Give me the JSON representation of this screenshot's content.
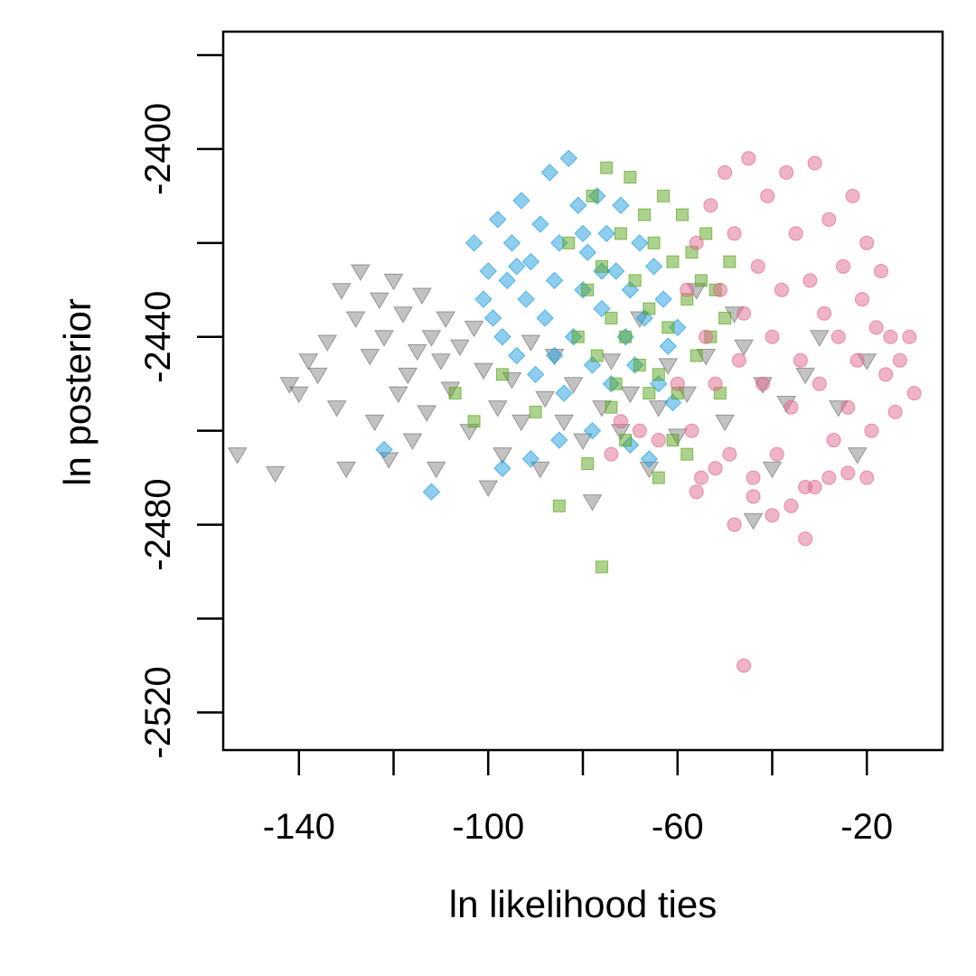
{
  "chart_data": {
    "type": "scatter",
    "title": "",
    "xlabel": "ln likelihood ties",
    "ylabel": "ln posterior",
    "xlim": [
      -156,
      -4
    ],
    "ylim": [
      -2528,
      -2375
    ],
    "x_ticks": [
      -140,
      -120,
      -100,
      -80,
      -60,
      -40,
      -20
    ],
    "x_tick_labels": [
      "-140",
      "-100",
      "-60",
      "-20"
    ],
    "x_tick_labels_at": [
      -140,
      -100,
      -60,
      -20
    ],
    "y_ticks": [
      -2520,
      -2500,
      -2480,
      -2460,
      -2440,
      -2420,
      -2400,
      -2380
    ],
    "y_tick_labels": [
      "-2520",
      "-2480",
      "-2440",
      "-2400"
    ],
    "y_tick_labels_at": [
      -2520,
      -2480,
      -2440,
      -2400
    ],
    "grid": false,
    "legend": "none",
    "series": [
      {
        "marker": "triangle-down",
        "color": "#666666",
        "opacity": 0.4,
        "points": [
          [
            -153,
            -2465
          ],
          [
            -145,
            -2469
          ],
          [
            -142,
            -2450
          ],
          [
            -140,
            -2452
          ],
          [
            -138,
            -2445
          ],
          [
            -136,
            -2448
          ],
          [
            -134,
            -2441
          ],
          [
            -132,
            -2455
          ],
          [
            -131,
            -2430
          ],
          [
            -130,
            -2468
          ],
          [
            -128,
            -2436
          ],
          [
            -127,
            -2426
          ],
          [
            -125,
            -2444
          ],
          [
            -124,
            -2458
          ],
          [
            -123,
            -2432
          ],
          [
            -122,
            -2440
          ],
          [
            -121,
            -2466
          ],
          [
            -120,
            -2428
          ],
          [
            -119,
            -2452
          ],
          [
            -118,
            -2435
          ],
          [
            -117,
            -2448
          ],
          [
            -116,
            -2462
          ],
          [
            -115,
            -2443
          ],
          [
            -114,
            -2431
          ],
          [
            -113,
            -2456
          ],
          [
            -112,
            -2440
          ],
          [
            -111,
            -2468
          ],
          [
            -110,
            -2445
          ],
          [
            -109,
            -2436
          ],
          [
            -108,
            -2451
          ],
          [
            -106,
            -2442
          ],
          [
            -104,
            -2460
          ],
          [
            -103,
            -2438
          ],
          [
            -101,
            -2447
          ],
          [
            -100,
            -2472
          ],
          [
            -98,
            -2455
          ],
          [
            -97,
            -2465
          ],
          [
            -95,
            -2449
          ],
          [
            -93,
            -2458
          ],
          [
            -91,
            -2441
          ],
          [
            -89,
            -2468
          ],
          [
            -88,
            -2453
          ],
          [
            -86,
            -2444
          ],
          [
            -84,
            -2458
          ],
          [
            -82,
            -2450
          ],
          [
            -80,
            -2462
          ],
          [
            -78,
            -2475
          ],
          [
            -76,
            -2455
          ],
          [
            -74,
            -2445
          ],
          [
            -72,
            -2460
          ],
          [
            -70,
            -2452
          ],
          [
            -68,
            -2436
          ],
          [
            -66,
            -2468
          ],
          [
            -64,
            -2455
          ],
          [
            -62,
            -2446
          ],
          [
            -60,
            -2461
          ],
          [
            -58,
            -2452
          ],
          [
            -56,
            -2430
          ],
          [
            -54,
            -2444
          ],
          [
            -50,
            -2458
          ],
          [
            -48,
            -2435
          ],
          [
            -46,
            -2442
          ],
          [
            -44,
            -2479
          ],
          [
            -42,
            -2450
          ],
          [
            -40,
            -2468
          ],
          [
            -37,
            -2454
          ],
          [
            -33,
            -2448
          ],
          [
            -30,
            -2440
          ],
          [
            -26,
            -2455
          ],
          [
            -22,
            -2465
          ],
          [
            -20,
            -2445
          ]
        ]
      },
      {
        "marker": "diamond",
        "color": "#1f9ee0",
        "opacity": 0.5,
        "points": [
          [
            -103,
            -2420
          ],
          [
            -101,
            -2432
          ],
          [
            -100,
            -2426
          ],
          [
            -99,
            -2436
          ],
          [
            -98,
            -2415
          ],
          [
            -97,
            -2440
          ],
          [
            -96,
            -2428
          ],
          [
            -95,
            -2420
          ],
          [
            -94,
            -2444
          ],
          [
            -93,
            -2411
          ],
          [
            -92,
            -2432
          ],
          [
            -91,
            -2424
          ],
          [
            -90,
            -2448
          ],
          [
            -89,
            -2416
          ],
          [
            -88,
            -2436
          ],
          [
            -87,
            -2405
          ],
          [
            -86,
            -2428
          ],
          [
            -85,
            -2420
          ],
          [
            -84,
            -2452
          ],
          [
            -83,
            -2402
          ],
          [
            -82,
            -2440
          ],
          [
            -81,
            -2412
          ],
          [
            -80,
            -2430
          ],
          [
            -79,
            -2422
          ],
          [
            -78,
            -2446
          ],
          [
            -77,
            -2410
          ],
          [
            -76,
            -2434
          ],
          [
            -75,
            -2418
          ],
          [
            -74,
            -2450
          ],
          [
            -73,
            -2426
          ],
          [
            -72,
            -2412
          ],
          [
            -71,
            -2440
          ],
          [
            -70,
            -2430
          ],
          [
            -69,
            -2446
          ],
          [
            -68,
            -2420
          ],
          [
            -67,
            -2436
          ],
          [
            -65,
            -2425
          ],
          [
            -64,
            -2450
          ],
          [
            -63,
            -2432
          ],
          [
            -62,
            -2442
          ],
          [
            -61,
            -2454
          ],
          [
            -60,
            -2438
          ],
          [
            -97,
            -2468
          ],
          [
            -112,
            -2473
          ],
          [
            -122,
            -2464
          ],
          [
            -91,
            -2466
          ],
          [
            -85,
            -2462
          ],
          [
            -78,
            -2460
          ],
          [
            -70,
            -2463
          ],
          [
            -66,
            -2466
          ],
          [
            -94,
            -2425
          ],
          [
            -86,
            -2444
          ],
          [
            -80,
            -2418
          ],
          [
            -76,
            -2426
          ]
        ]
      },
      {
        "marker": "square",
        "color": "#5ba51f",
        "opacity": 0.5,
        "points": [
          [
            -83,
            -2420
          ],
          [
            -81,
            -2440
          ],
          [
            -79,
            -2430
          ],
          [
            -78,
            -2410
          ],
          [
            -77,
            -2444
          ],
          [
            -76,
            -2425
          ],
          [
            -75,
            -2404
          ],
          [
            -74,
            -2436
          ],
          [
            -73,
            -2450
          ],
          [
            -72,
            -2418
          ],
          [
            -71,
            -2440
          ],
          [
            -70,
            -2406
          ],
          [
            -69,
            -2428
          ],
          [
            -68,
            -2446
          ],
          [
            -67,
            -2414
          ],
          [
            -66,
            -2434
          ],
          [
            -65,
            -2420
          ],
          [
            -64,
            -2448
          ],
          [
            -63,
            -2410
          ],
          [
            -62,
            -2438
          ],
          [
            -61,
            -2424
          ],
          [
            -60,
            -2452
          ],
          [
            -59,
            -2414
          ],
          [
            -58,
            -2432
          ],
          [
            -57,
            -2422
          ],
          [
            -56,
            -2444
          ],
          [
            -55,
            -2428
          ],
          [
            -54,
            -2418
          ],
          [
            -53,
            -2440
          ],
          [
            -52,
            -2430
          ],
          [
            -51,
            -2452
          ],
          [
            -50,
            -2436
          ],
          [
            -49,
            -2424
          ],
          [
            -76,
            -2489
          ],
          [
            -85,
            -2476
          ],
          [
            -79,
            -2467
          ],
          [
            -71,
            -2462
          ],
          [
            -64,
            -2470
          ],
          [
            -58,
            -2465
          ],
          [
            -107,
            -2452
          ],
          [
            -103,
            -2458
          ],
          [
            -97,
            -2448
          ],
          [
            -90,
            -2456
          ],
          [
            -74,
            -2455
          ],
          [
            -66,
            -2452
          ],
          [
            -61,
            -2462
          ]
        ]
      },
      {
        "marker": "circle",
        "color": "#e06a8c",
        "opacity": 0.5,
        "points": [
          [
            -46,
            -2510
          ],
          [
            -60,
            -2450
          ],
          [
            -58,
            -2430
          ],
          [
            -57,
            -2460
          ],
          [
            -56,
            -2420
          ],
          [
            -55,
            -2470
          ],
          [
            -54,
            -2440
          ],
          [
            -53,
            -2412
          ],
          [
            -52,
            -2450
          ],
          [
            -51,
            -2430
          ],
          [
            -50,
            -2405
          ],
          [
            -49,
            -2465
          ],
          [
            -48,
            -2418
          ],
          [
            -47,
            -2445
          ],
          [
            -46,
            -2435
          ],
          [
            -45,
            -2402
          ],
          [
            -44,
            -2470
          ],
          [
            -43,
            -2425
          ],
          [
            -42,
            -2450
          ],
          [
            -41,
            -2410
          ],
          [
            -40,
            -2440
          ],
          [
            -39,
            -2465
          ],
          [
            -38,
            -2430
          ],
          [
            -37,
            -2405
          ],
          [
            -36,
            -2455
          ],
          [
            -35,
            -2418
          ],
          [
            -34,
            -2445
          ],
          [
            -33,
            -2472
          ],
          [
            -32,
            -2428
          ],
          [
            -31,
            -2403
          ],
          [
            -30,
            -2450
          ],
          [
            -29,
            -2435
          ],
          [
            -28,
            -2415
          ],
          [
            -27,
            -2462
          ],
          [
            -26,
            -2440
          ],
          [
            -25,
            -2425
          ],
          [
            -24,
            -2455
          ],
          [
            -23,
            -2410
          ],
          [
            -22,
            -2445
          ],
          [
            -21,
            -2432
          ],
          [
            -20,
            -2420
          ],
          [
            -19,
            -2460
          ],
          [
            -18,
            -2438
          ],
          [
            -17,
            -2426
          ],
          [
            -16,
            -2448
          ],
          [
            -15,
            -2440
          ],
          [
            -14,
            -2456
          ],
          [
            -13,
            -2445
          ],
          [
            -11,
            -2440
          ],
          [
            -10,
            -2452
          ],
          [
            -33,
            -2483
          ],
          [
            -48,
            -2480
          ],
          [
            -44,
            -2474
          ],
          [
            -40,
            -2478
          ],
          [
            -36,
            -2476
          ],
          [
            -31,
            -2472
          ],
          [
            -28,
            -2470
          ],
          [
            -24,
            -2469
          ],
          [
            -20,
            -2470
          ],
          [
            -56,
            -2473
          ],
          [
            -52,
            -2468
          ],
          [
            -64,
            -2462
          ],
          [
            -68,
            -2460
          ],
          [
            -72,
            -2458
          ],
          [
            -74,
            -2465
          ]
        ]
      }
    ]
  }
}
